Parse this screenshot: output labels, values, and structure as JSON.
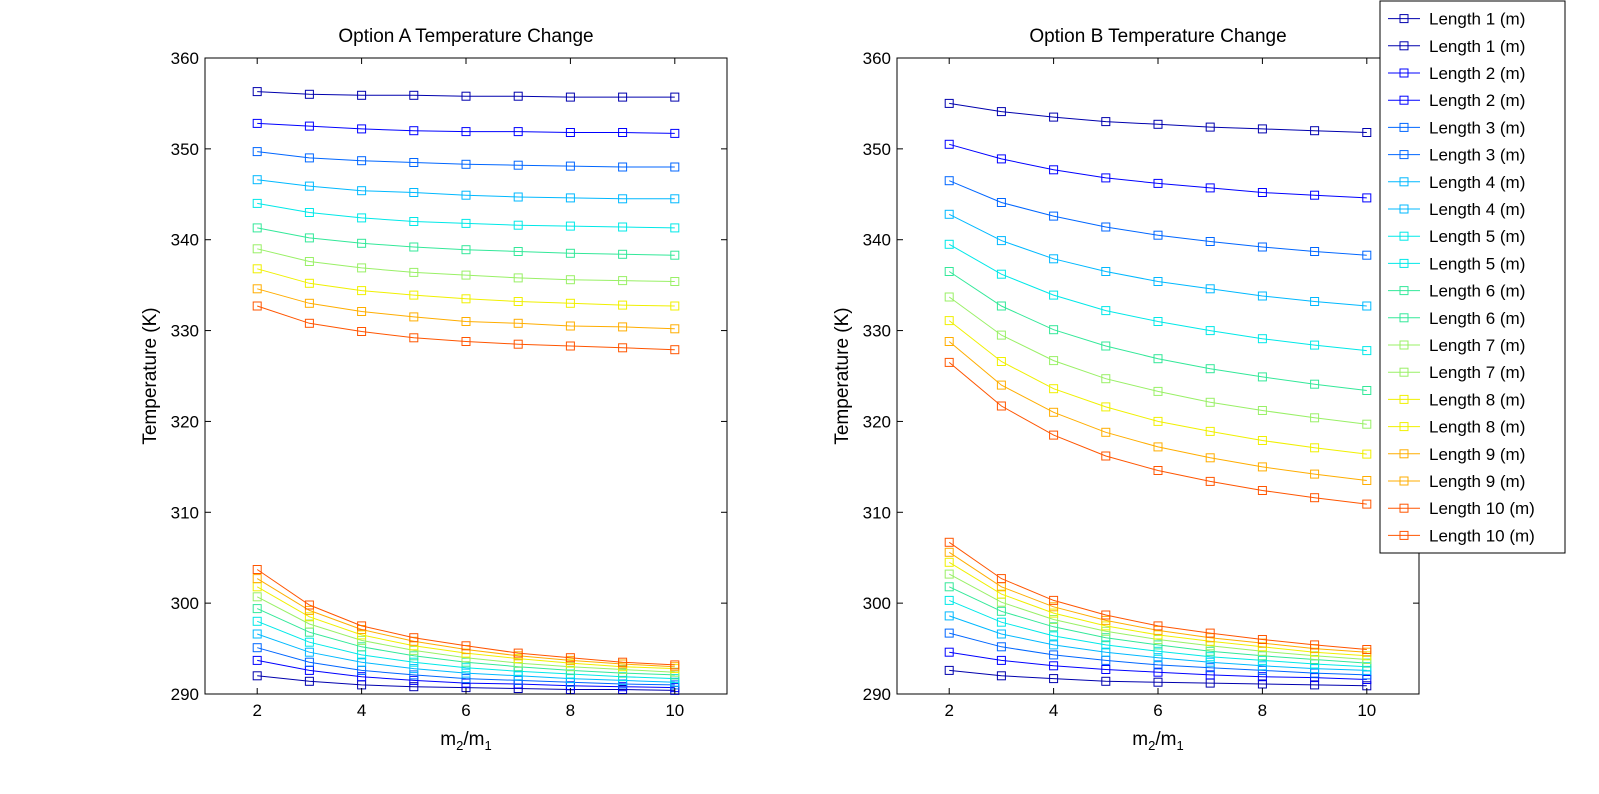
{
  "chart_data": [
    {
      "type": "line",
      "title": "Option A Temperature Change",
      "xlabel_main": "m",
      "xlabel_sub1": "2",
      "xlabel_div": "/m",
      "xlabel_sub2": "1",
      "ylabel": "Temperature (K)",
      "xlim": [
        1,
        11
      ],
      "ylim": [
        290,
        360
      ],
      "xticks": [
        2,
        4,
        6,
        8,
        10
      ],
      "yticks": [
        290,
        300,
        310,
        320,
        330,
        340,
        350,
        360
      ],
      "x": [
        2,
        3,
        4,
        5,
        6,
        7,
        8,
        9,
        10
      ],
      "grid": false,
      "series": [
        {
          "name": "Length 1 (m)",
          "color": "#0000ad",
          "values": [
            356.3,
            356.0,
            355.9,
            355.9,
            355.8,
            355.8,
            355.7,
            355.7,
            355.7
          ]
        },
        {
          "name": "Length 1 (m)",
          "color": "#0000ad",
          "values": [
            292.0,
            291.4,
            291.0,
            290.8,
            290.7,
            290.6,
            290.5,
            290.5,
            290.4
          ]
        },
        {
          "name": "Length 2 (m)",
          "color": "#0000ff",
          "values": [
            352.8,
            352.5,
            352.2,
            352.0,
            351.9,
            351.9,
            351.8,
            351.8,
            351.7
          ]
        },
        {
          "name": "Length 2 (m)",
          "color": "#0000ff",
          "values": [
            293.7,
            292.6,
            291.9,
            291.5,
            291.2,
            291.1,
            290.9,
            290.8,
            290.7
          ]
        },
        {
          "name": "Length 3 (m)",
          "color": "#0066ff",
          "values": [
            349.7,
            349.0,
            348.7,
            348.5,
            348.3,
            348.2,
            348.1,
            348.0,
            348.0
          ]
        },
        {
          "name": "Length 3 (m)",
          "color": "#0066ff",
          "values": [
            295.1,
            293.5,
            292.6,
            292.1,
            291.7,
            291.5,
            291.3,
            291.1,
            291.0
          ]
        },
        {
          "name": "Length 4 (m)",
          "color": "#00b8ff",
          "values": [
            346.6,
            345.9,
            345.4,
            345.2,
            344.9,
            344.7,
            344.6,
            344.5,
            344.5
          ]
        },
        {
          "name": "Length 4 (m)",
          "color": "#00b8ff",
          "values": [
            296.6,
            294.6,
            293.5,
            292.8,
            292.3,
            292.0,
            291.7,
            291.5,
            291.3
          ]
        },
        {
          "name": "Length 5 (m)",
          "color": "#00e8e8",
          "values": [
            344.0,
            343.0,
            342.4,
            342.0,
            341.8,
            341.6,
            341.5,
            341.4,
            341.3
          ]
        },
        {
          "name": "Length 5 (m)",
          "color": "#00e8e8",
          "values": [
            298.0,
            295.7,
            294.3,
            293.5,
            292.9,
            292.5,
            292.2,
            291.9,
            291.7
          ]
        },
        {
          "name": "Length 6 (m)",
          "color": "#33e899",
          "values": [
            341.3,
            340.2,
            339.6,
            339.2,
            338.9,
            338.7,
            338.5,
            338.4,
            338.3
          ]
        },
        {
          "name": "Length 6 (m)",
          "color": "#33e899",
          "values": [
            299.4,
            296.8,
            295.2,
            294.2,
            293.5,
            293.0,
            292.6,
            292.3,
            292.1
          ]
        },
        {
          "name": "Length 7 (m)",
          "color": "#99f066",
          "values": [
            339.0,
            337.6,
            336.9,
            336.4,
            336.1,
            335.8,
            335.6,
            335.5,
            335.4
          ]
        },
        {
          "name": "Length 7 (m)",
          "color": "#99f066",
          "values": [
            300.7,
            297.7,
            295.9,
            294.8,
            294.0,
            293.4,
            293.0,
            292.7,
            292.4
          ]
        },
        {
          "name": "Length 8 (m)",
          "color": "#f0f000",
          "values": [
            336.8,
            335.2,
            334.4,
            333.9,
            333.5,
            333.2,
            333.0,
            332.8,
            332.7
          ]
        },
        {
          "name": "Length 8 (m)",
          "color": "#f0f000",
          "values": [
            301.8,
            298.5,
            296.5,
            295.3,
            294.5,
            293.9,
            293.4,
            293.0,
            292.8
          ]
        },
        {
          "name": "Length 9 (m)",
          "color": "#ffad00",
          "values": [
            334.6,
            333.0,
            332.1,
            331.5,
            331.0,
            330.8,
            330.5,
            330.4,
            330.2
          ]
        },
        {
          "name": "Length 9 (m)",
          "color": "#ffad00",
          "values": [
            302.7,
            299.2,
            297.1,
            295.8,
            294.9,
            294.2,
            293.7,
            293.3,
            293.0
          ]
        },
        {
          "name": "Length 10 (m)",
          "color": "#ff5500",
          "values": [
            332.7,
            330.8,
            329.9,
            329.2,
            328.8,
            328.5,
            328.3,
            328.1,
            327.9
          ]
        },
        {
          "name": "Length 10 (m)",
          "color": "#ff5500",
          "values": [
            303.7,
            299.8,
            297.5,
            296.2,
            295.3,
            294.5,
            294.0,
            293.5,
            293.2
          ]
        }
      ]
    },
    {
      "type": "line",
      "title": "Option B Temperature Change",
      "xlabel_main": "m",
      "xlabel_sub1": "2",
      "xlabel_div": "/m",
      "xlabel_sub2": "1",
      "ylabel": "Temperature (K)",
      "xlim": [
        1,
        11
      ],
      "ylim": [
        290,
        360
      ],
      "xticks": [
        2,
        4,
        6,
        8,
        10
      ],
      "yticks": [
        290,
        300,
        310,
        320,
        330,
        340,
        350,
        360
      ],
      "x": [
        2,
        3,
        4,
        5,
        6,
        7,
        8,
        9,
        10
      ],
      "grid": false,
      "legend_position": "top-right",
      "series": [
        {
          "name": "Length 1 (m)",
          "color": "#0000ad",
          "values": [
            355.0,
            354.1,
            353.5,
            353.0,
            352.7,
            352.4,
            352.2,
            352.0,
            351.8
          ]
        },
        {
          "name": "Length 1 (m)",
          "color": "#0000ad",
          "values": [
            292.6,
            292.0,
            291.7,
            291.4,
            291.3,
            291.2,
            291.1,
            291.0,
            290.9
          ]
        },
        {
          "name": "Length 2 (m)",
          "color": "#0000ff",
          "values": [
            350.5,
            348.9,
            347.7,
            346.8,
            346.2,
            345.7,
            345.2,
            344.9,
            344.6
          ]
        },
        {
          "name": "Length 2 (m)",
          "color": "#0000ff",
          "values": [
            294.6,
            293.7,
            293.1,
            292.7,
            292.4,
            292.1,
            291.9,
            291.8,
            291.6
          ]
        },
        {
          "name": "Length 3 (m)",
          "color": "#0066ff",
          "values": [
            346.5,
            344.1,
            342.6,
            341.4,
            340.5,
            339.8,
            339.2,
            338.7,
            338.3
          ]
        },
        {
          "name": "Length 3 (m)",
          "color": "#0066ff",
          "values": [
            296.7,
            295.2,
            294.3,
            293.7,
            293.2,
            292.9,
            292.6,
            292.3,
            292.1
          ]
        },
        {
          "name": "Length 4 (m)",
          "color": "#00b8ff",
          "values": [
            342.8,
            339.9,
            337.9,
            336.5,
            335.4,
            334.6,
            333.8,
            333.2,
            332.7
          ]
        },
        {
          "name": "Length 4 (m)",
          "color": "#00b8ff",
          "values": [
            298.6,
            296.6,
            295.4,
            294.6,
            294.0,
            293.5,
            293.1,
            292.8,
            292.6
          ]
        },
        {
          "name": "Length 5 (m)",
          "color": "#00e8e8",
          "values": [
            339.5,
            336.2,
            333.9,
            332.2,
            331.0,
            330.0,
            329.1,
            328.4,
            327.8
          ]
        },
        {
          "name": "Length 5 (m)",
          "color": "#00e8e8",
          "values": [
            300.3,
            297.9,
            296.4,
            295.4,
            294.7,
            294.1,
            293.7,
            293.3,
            293.0
          ]
        },
        {
          "name": "Length 6 (m)",
          "color": "#33e899",
          "values": [
            336.5,
            332.7,
            330.1,
            328.3,
            326.9,
            325.8,
            324.9,
            324.1,
            323.4
          ]
        },
        {
          "name": "Length 6 (m)",
          "color": "#33e899",
          "values": [
            301.8,
            299.1,
            297.4,
            296.2,
            295.4,
            294.7,
            294.2,
            293.8,
            293.4
          ]
        },
        {
          "name": "Length 7 (m)",
          "color": "#99f066",
          "values": [
            333.7,
            329.5,
            326.7,
            324.7,
            323.3,
            322.1,
            321.2,
            320.4,
            319.7
          ]
        },
        {
          "name": "Length 7 (m)",
          "color": "#99f066",
          "values": [
            303.2,
            300.1,
            298.2,
            296.9,
            296.0,
            295.3,
            294.7,
            294.2,
            293.8
          ]
        },
        {
          "name": "Length 8 (m)",
          "color": "#f0f000",
          "values": [
            331.1,
            326.6,
            323.6,
            321.6,
            320.0,
            318.9,
            317.9,
            317.1,
            316.4
          ]
        },
        {
          "name": "Length 8 (m)",
          "color": "#f0f000",
          "values": [
            304.5,
            301.0,
            298.9,
            297.5,
            296.5,
            295.8,
            295.2,
            294.6,
            294.2
          ]
        },
        {
          "name": "Length 9 (m)",
          "color": "#ffad00",
          "values": [
            328.8,
            324.0,
            321.0,
            318.8,
            317.2,
            316.0,
            315.0,
            314.2,
            313.5
          ]
        },
        {
          "name": "Length 9 (m)",
          "color": "#ffad00",
          "values": [
            305.6,
            301.8,
            299.6,
            298.1,
            297.0,
            296.2,
            295.6,
            295.0,
            294.6
          ]
        },
        {
          "name": "Length 10 (m)",
          "color": "#ff5500",
          "values": [
            326.5,
            321.7,
            318.5,
            316.2,
            314.6,
            313.4,
            312.4,
            311.6,
            310.9
          ]
        },
        {
          "name": "Length 10 (m)",
          "color": "#ff5500",
          "values": [
            306.7,
            302.7,
            300.3,
            298.7,
            297.5,
            296.7,
            296.0,
            295.4,
            294.9
          ]
        }
      ]
    }
  ]
}
